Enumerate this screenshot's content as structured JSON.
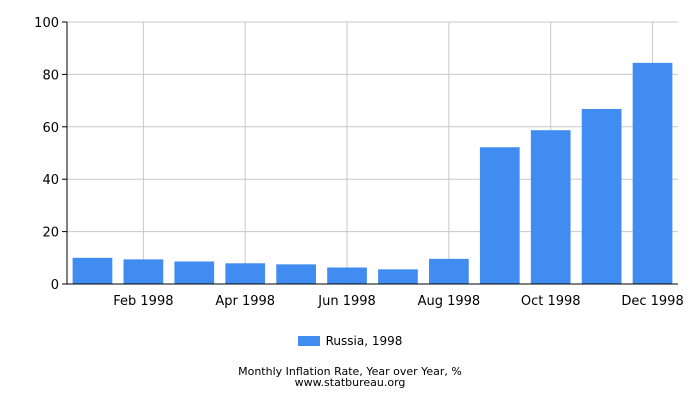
{
  "chart_data": {
    "type": "bar",
    "categories": [
      "Jan 1998",
      "Feb 1998",
      "Mar 1998",
      "Apr 1998",
      "May 1998",
      "Jun 1998",
      "Jul 1998",
      "Aug 1998",
      "Sep 1998",
      "Oct 1998",
      "Nov 1998",
      "Dec 1998"
    ],
    "x_tick_labels": [
      "",
      "Feb 1998",
      "",
      "Apr 1998",
      "",
      "Jun 1998",
      "",
      "Aug 1998",
      "",
      "Oct 1998",
      "",
      "Dec 1998"
    ],
    "series": [
      {
        "name": "Russia, 1998",
        "color": "#418CF0",
        "values": [
          10.0,
          9.4,
          8.6,
          7.9,
          7.5,
          6.3,
          5.6,
          9.6,
          52.2,
          58.7,
          66.8,
          84.4
        ]
      }
    ],
    "ylim": [
      0,
      100
    ],
    "y_ticks": [
      0,
      20,
      40,
      60,
      80,
      100
    ],
    "grid": true,
    "legend_position": "bottom",
    "title": "Monthly Inflation Rate, Year over Year, %",
    "source": "www.statbureau.org"
  }
}
